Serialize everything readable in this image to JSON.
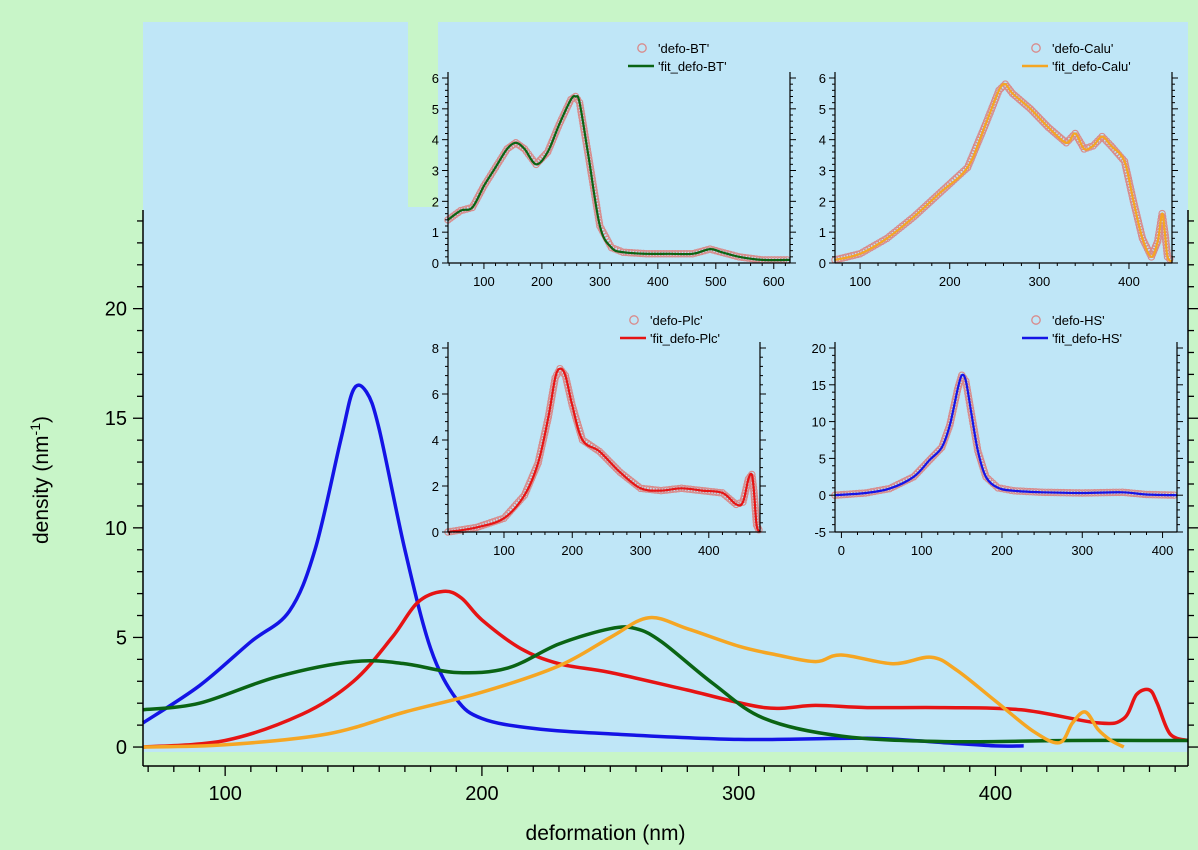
{
  "colors": {
    "page_bg": "#c8f5c8",
    "plot_bg": "#bfe6f7",
    "blue": "#1414e6",
    "red": "#e61414",
    "green": "#0a6414",
    "orange": "#f5a623",
    "marker": "#d98a8a"
  },
  "chart_data": [
    {
      "type": "line",
      "id": "main",
      "xlabel": "deformation (nm)",
      "ylabel": "density (nm",
      "ylabel_sup": "-1",
      "ylabel_close": ")",
      "xlim": [
        68,
        475
      ],
      "ylim": [
        -0.5,
        24.5
      ],
      "xticks": [
        100,
        200,
        300,
        400
      ],
      "yticks": [
        0,
        5,
        10,
        15,
        20
      ],
      "series": [
        {
          "color": "#1414e6",
          "x": [
            68,
            90,
            110,
            125,
            135,
            145,
            150,
            155,
            160,
            170,
            180,
            190,
            200,
            220,
            250,
            300,
            350,
            380,
            400,
            411
          ],
          "y": [
            1.1,
            2.8,
            4.8,
            6.2,
            9,
            14,
            16.3,
            16.2,
            14.5,
            9,
            4.5,
            2.2,
            1.3,
            0.85,
            0.6,
            0.35,
            0.4,
            0.2,
            0.05,
            0.05
          ]
        },
        {
          "color": "#e61414",
          "x": [
            68,
            100,
            130,
            150,
            165,
            175,
            185,
            192,
            200,
            215,
            230,
            250,
            280,
            310,
            330,
            350,
            380,
            410,
            440,
            450,
            455,
            460,
            463,
            468,
            475
          ],
          "y": [
            0,
            0.3,
            1.5,
            3,
            5,
            6.6,
            7.1,
            6.8,
            5.8,
            4.5,
            3.8,
            3.4,
            2.6,
            1.8,
            1.9,
            1.8,
            1.8,
            1.7,
            1.1,
            1.3,
            2.4,
            2.6,
            2.0,
            0.6,
            0.3
          ]
        },
        {
          "color": "#0a6414",
          "x": [
            68,
            90,
            120,
            150,
            170,
            190,
            210,
            230,
            250,
            260,
            270,
            290,
            310,
            340,
            380,
            430,
            475
          ],
          "y": [
            1.7,
            2.0,
            3.2,
            3.9,
            3.8,
            3.4,
            3.6,
            4.7,
            5.4,
            5.4,
            4.8,
            2.9,
            1.3,
            0.5,
            0.25,
            0.3,
            0.3
          ]
        },
        {
          "color": "#f5a623",
          "x": [
            68,
            100,
            140,
            170,
            200,
            230,
            250,
            265,
            280,
            300,
            315,
            330,
            340,
            360,
            375,
            385,
            400,
            415,
            425,
            430,
            435,
            440,
            445,
            450
          ],
          "y": [
            0,
            0.1,
            0.6,
            1.6,
            2.5,
            3.7,
            5.0,
            5.9,
            5.4,
            4.6,
            4.2,
            3.9,
            4.2,
            3.8,
            4.1,
            3.5,
            2.1,
            0.7,
            0.2,
            1.1,
            1.6,
            0.8,
            0.3,
            0.0
          ]
        }
      ]
    },
    {
      "type": "line",
      "id": "inset-bt",
      "xlim": [
        38,
        628
      ],
      "ylim": [
        0,
        6
      ],
      "xticks": [
        100,
        200,
        300,
        400,
        500,
        600
      ],
      "yticks": [
        0,
        1,
        2,
        3,
        4,
        5,
        6
      ],
      "series": [
        {
          "name": "'defo-BT'",
          "color": "#d98a8a",
          "marker": "circle",
          "x": [
            38,
            60,
            80,
            100,
            120,
            140,
            155,
            170,
            190,
            210,
            230,
            250,
            258,
            265,
            280,
            300,
            320,
            340,
            380,
            420,
            460,
            490,
            510,
            540,
            580,
            628
          ],
          "y": [
            1.4,
            1.7,
            1.8,
            2.5,
            3.1,
            3.7,
            3.9,
            3.7,
            3.2,
            3.6,
            4.5,
            5.3,
            5.4,
            5.2,
            3.5,
            1.2,
            0.5,
            0.35,
            0.3,
            0.3,
            0.3,
            0.45,
            0.35,
            0.2,
            0.1,
            0.1
          ]
        },
        {
          "name": "'fit_defo-BT'",
          "color": "#0a6414",
          "x": [
            38,
            60,
            80,
            100,
            120,
            140,
            155,
            170,
            190,
            210,
            230,
            250,
            258,
            265,
            280,
            300,
            320,
            340,
            380,
            420,
            460,
            490,
            510,
            540,
            580,
            628
          ],
          "y": [
            1.4,
            1.7,
            1.8,
            2.5,
            3.1,
            3.7,
            3.9,
            3.7,
            3.2,
            3.6,
            4.5,
            5.3,
            5.4,
            5.2,
            3.5,
            1.2,
            0.5,
            0.35,
            0.3,
            0.3,
            0.3,
            0.45,
            0.35,
            0.2,
            0.1,
            0.1
          ]
        }
      ]
    },
    {
      "type": "line",
      "id": "inset-calu",
      "xlim": [
        72,
        448
      ],
      "ylim": [
        0,
        6
      ],
      "xticks": [
        100,
        200,
        300,
        400
      ],
      "yticks": [
        0,
        1,
        2,
        3,
        4,
        5,
        6
      ],
      "series": [
        {
          "name": "'defo-Calu'",
          "color": "#d98a8a",
          "marker": "circle",
          "x": [
            72,
            100,
            130,
            160,
            190,
            220,
            240,
            255,
            262,
            270,
            290,
            310,
            330,
            340,
            350,
            360,
            370,
            380,
            395,
            405,
            415,
            425,
            432,
            437,
            440,
            443,
            448
          ],
          "y": [
            0.1,
            0.3,
            0.8,
            1.5,
            2.3,
            3.1,
            4.5,
            5.6,
            5.8,
            5.5,
            5.0,
            4.4,
            3.9,
            4.2,
            3.7,
            3.8,
            4.1,
            3.8,
            3.3,
            2.0,
            0.8,
            0.2,
            0.7,
            1.6,
            1.0,
            0.2,
            0.05
          ]
        },
        {
          "name": "'fit_defo-Calu'",
          "color": "#f5a623",
          "x": [
            72,
            100,
            130,
            160,
            190,
            220,
            240,
            255,
            262,
            270,
            290,
            310,
            330,
            340,
            350,
            360,
            370,
            380,
            395,
            405,
            415,
            425,
            432,
            437,
            440,
            443,
            448
          ],
          "y": [
            0.1,
            0.3,
            0.8,
            1.5,
            2.3,
            3.1,
            4.5,
            5.6,
            5.8,
            5.5,
            5.0,
            4.4,
            3.9,
            4.2,
            3.7,
            3.8,
            4.1,
            3.8,
            3.3,
            2.0,
            0.8,
            0.2,
            0.7,
            1.6,
            1.0,
            0.2,
            0.05
          ]
        }
      ]
    },
    {
      "type": "line",
      "id": "inset-plc",
      "xlim": [
        18,
        475
      ],
      "ylim": [
        0,
        8
      ],
      "xticks": [
        100,
        200,
        300,
        400
      ],
      "yticks": [
        0,
        2,
        4,
        6,
        8
      ],
      "series": [
        {
          "name": "'defo-Plc'",
          "color": "#d98a8a",
          "marker": "circle",
          "x": [
            18,
            60,
            100,
            130,
            150,
            165,
            175,
            182,
            190,
            200,
            215,
            240,
            270,
            300,
            330,
            360,
            390,
            420,
            440,
            450,
            458,
            463,
            466,
            470,
            475
          ],
          "y": [
            0,
            0.2,
            0.6,
            1.6,
            3.0,
            5.0,
            6.7,
            7.1,
            6.8,
            5.5,
            4.0,
            3.5,
            2.6,
            1.9,
            1.8,
            1.9,
            1.8,
            1.7,
            1.2,
            1.3,
            2.3,
            2.5,
            1.8,
            0.3,
            0
          ]
        },
        {
          "name": "'fit_defo-Plc'",
          "color": "#e61414",
          "x": [
            18,
            60,
            100,
            130,
            150,
            165,
            175,
            182,
            190,
            200,
            215,
            240,
            270,
            300,
            330,
            360,
            390,
            420,
            440,
            450,
            458,
            463,
            466,
            470,
            475
          ],
          "y": [
            0,
            0.2,
            0.6,
            1.6,
            3.0,
            5.0,
            6.7,
            7.1,
            6.8,
            5.5,
            4.0,
            3.5,
            2.6,
            1.9,
            1.8,
            1.9,
            1.8,
            1.7,
            1.2,
            1.3,
            2.3,
            2.5,
            1.8,
            0.3,
            0
          ]
        }
      ]
    },
    {
      "type": "line",
      "id": "inset-hs",
      "xlim": [
        -8,
        418
      ],
      "ylim": [
        -5,
        20
      ],
      "xticks": [
        0,
        100,
        200,
        300,
        400
      ],
      "yticks": [
        -5,
        0,
        5,
        10,
        15,
        20
      ],
      "series": [
        {
          "name": "'defo-HS'",
          "color": "#d98a8a",
          "marker": "circle",
          "x": [
            -8,
            30,
            60,
            90,
            110,
            125,
            135,
            145,
            150,
            155,
            162,
            170,
            180,
            195,
            215,
            250,
            300,
            350,
            380,
            418
          ],
          "y": [
            0,
            0.3,
            0.9,
            2.5,
            4.8,
            6.5,
            9.5,
            14.5,
            16.3,
            15.5,
            11.0,
            6.0,
            2.5,
            1.0,
            0.6,
            0.4,
            0.3,
            0.4,
            0.1,
            0
          ]
        },
        {
          "name": "'fit_defo-HS'",
          "color": "#1414e6",
          "x": [
            -8,
            30,
            60,
            90,
            110,
            125,
            135,
            145,
            150,
            155,
            162,
            170,
            180,
            195,
            215,
            250,
            300,
            350,
            380,
            418
          ],
          "y": [
            0,
            0.3,
            0.9,
            2.5,
            4.8,
            6.5,
            9.5,
            14.5,
            16.3,
            15.5,
            11.0,
            6.0,
            2.5,
            1.0,
            0.6,
            0.4,
            0.3,
            0.4,
            0.1,
            0
          ]
        }
      ]
    }
  ]
}
